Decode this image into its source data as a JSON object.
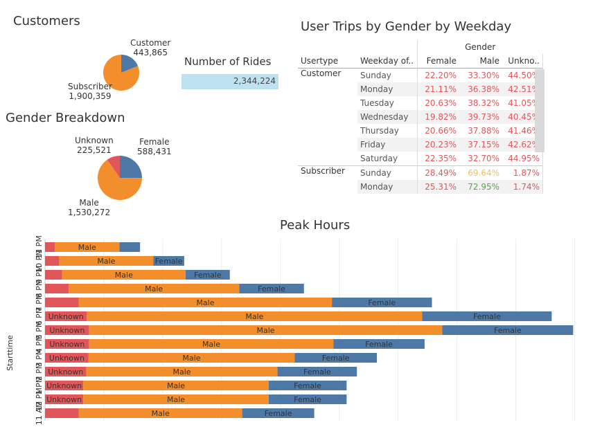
{
  "customers": {
    "title": "Customers",
    "slices": [
      {
        "label": "Customer",
        "value": "443,865",
        "n": 443865,
        "color": "#4e79a7"
      },
      {
        "label": "Subscriber",
        "value": "1,900,359",
        "n": 1900359,
        "color": "#f28e2b"
      }
    ]
  },
  "rides": {
    "title": "Number of Rides",
    "value": "2,344,224"
  },
  "gender": {
    "title": "Gender Breakdown",
    "slices": [
      {
        "label": "Female",
        "value": "588,431",
        "n": 588431,
        "color": "#4e79a7"
      },
      {
        "label": "Male",
        "value": "1,530,272",
        "n": 1530272,
        "color": "#f28e2b"
      },
      {
        "label": "Unknown",
        "value": "225,521",
        "n": 225521,
        "color": "#e15759"
      }
    ]
  },
  "trips_table": {
    "title": "User Trips by Gender by Weekday",
    "group_header": "Gender",
    "columns": [
      "Usertype",
      "Weekday of..",
      "Female",
      "Male",
      "Unkno.."
    ],
    "groups": [
      {
        "usertype": "Customer",
        "rows": [
          {
            "day": "Sunday",
            "female": "22.20%",
            "male": "33.30%",
            "unknown": "44.50%"
          },
          {
            "day": "Monday",
            "female": "21.11%",
            "male": "36.38%",
            "unknown": "42.51%"
          },
          {
            "day": "Tuesday",
            "female": "20.63%",
            "male": "38.32%",
            "unknown": "41.05%"
          },
          {
            "day": "Wednesday",
            "female": "19.82%",
            "male": "39.73%",
            "unknown": "40.45%"
          },
          {
            "day": "Thursday",
            "female": "20.66%",
            "male": "37.88%",
            "unknown": "41.46%"
          },
          {
            "day": "Friday",
            "female": "20.23%",
            "male": "37.15%",
            "unknown": "42.62%"
          },
          {
            "day": "Saturday",
            "female": "22.35%",
            "male": "32.70%",
            "unknown": "44.95%"
          }
        ]
      },
      {
        "usertype": "Subscriber",
        "rows": [
          {
            "day": "Sunday",
            "female": "28.49%",
            "male": "69.64%",
            "unknown": "1.87%"
          },
          {
            "day": "Monday",
            "female": "25.31%",
            "male": "72.95%",
            "unknown": "1.74%"
          }
        ]
      }
    ],
    "colors": {
      "red": "#e15759",
      "yellow": "#f0c060",
      "green": "#59a14f"
    }
  },
  "chart_data": {
    "type": "bar",
    "orientation": "horizontal",
    "stacked": true,
    "title": "Peak Hours",
    "ylabel": "Starttime",
    "xlabel": "",
    "grid": true,
    "categories": [
      "11 PM",
      "10 PM",
      "9 PM",
      "8 PM",
      "7 PM",
      "6 PM",
      "5 PM",
      "4 PM",
      "3 PM",
      "2 PM",
      "1 PM",
      "12 PM",
      "11 AM"
    ],
    "series": [
      {
        "name": "Unknown",
        "color": "#e15759",
        "values": [
          3300,
          4800,
          5800,
          8000,
          11500,
          14200,
          15000,
          15000,
          14800,
          14000,
          13000,
          13000,
          11500
        ]
      },
      {
        "name": "Male",
        "color": "#f28e2b",
        "values": [
          22000,
          32000,
          42000,
          58000,
          86000,
          114000,
          120000,
          83000,
          70000,
          65000,
          63000,
          63000,
          55500
        ]
      },
      {
        "name": "Female",
        "color": "#4e79a7",
        "values": [
          7000,
          10500,
          15000,
          22000,
          34000,
          44000,
          44500,
          31000,
          28000,
          27000,
          26500,
          26500,
          24500
        ]
      }
    ],
    "show_segment_labels": [
      [
        "",
        "Male",
        ""
      ],
      [
        "",
        "Male",
        "Female"
      ],
      [
        "",
        "Male",
        "Female"
      ],
      [
        "",
        "Male",
        "Female"
      ],
      [
        "",
        "Male",
        "Female"
      ],
      [
        "Unknown",
        "Male",
        "Female"
      ],
      [
        "Unknown",
        "Male",
        "Female"
      ],
      [
        "Unknown",
        "Male",
        "Female"
      ],
      [
        "Unknown",
        "Male",
        "Female"
      ],
      [
        "Unknown",
        "Male",
        "Female"
      ],
      [
        "Unknown",
        "Male",
        "Female"
      ],
      [
        "Unknown",
        "Male",
        "Female"
      ],
      [
        "",
        "Male",
        "Female"
      ]
    ],
    "xlim": [
      0,
      190000
    ]
  }
}
